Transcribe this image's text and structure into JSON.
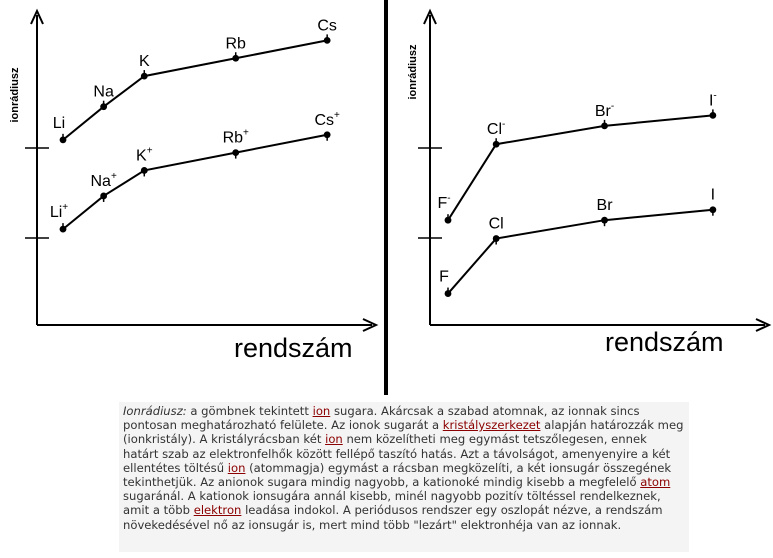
{
  "chart_data": [
    {
      "type": "line",
      "ylabel": "ionrádiusz",
      "xlabel": "rendszám",
      "series": [
        {
          "points": [
            {
              "base": "Li",
              "sup": "",
              "x": 3,
              "y": 0.53
            },
            {
              "base": "Na",
              "sup": "",
              "x": 11,
              "y": 0.66
            },
            {
              "base": "K",
              "sup": "",
              "x": 19,
              "y": 0.78
            },
            {
              "base": "Rb",
              "sup": "",
              "x": 37,
              "y": 0.85
            },
            {
              "base": "Cs",
              "sup": "",
              "x": 55,
              "y": 0.92
            }
          ]
        },
        {
          "points": [
            {
              "base": "Li",
              "sup": "+",
              "x": 3,
              "y": 0.18
            },
            {
              "base": "Na",
              "sup": "+",
              "x": 11,
              "y": 0.31
            },
            {
              "base": "K",
              "sup": "+",
              "x": 19,
              "y": 0.41
            },
            {
              "base": "Rb",
              "sup": "+",
              "x": 37,
              "y": 0.48
            },
            {
              "base": "Cs",
              "sup": "+",
              "x": 55,
              "y": 0.55
            }
          ]
        }
      ]
    },
    {
      "type": "line",
      "ylabel": "ionrádiusz",
      "xlabel": "rendszám",
      "series": [
        {
          "points": [
            {
              "base": "F",
              "sup": "-",
              "x": 9,
              "y": 0.4
            },
            {
              "base": "Cl",
              "sup": "-",
              "x": 17,
              "y": 0.69
            },
            {
              "base": "Br",
              "sup": "-",
              "x": 35,
              "y": 0.76
            },
            {
              "base": "I",
              "sup": "-",
              "x": 53,
              "y": 0.8
            }
          ]
        },
        {
          "points": [
            {
              "base": "F",
              "sup": "",
              "x": 9,
              "y": 0.12
            },
            {
              "base": "Cl",
              "sup": "",
              "x": 17,
              "y": 0.33
            },
            {
              "base": "Br",
              "sup": "",
              "x": 35,
              "y": 0.4
            },
            {
              "base": "I",
              "sup": "",
              "x": 53,
              "y": 0.44
            }
          ]
        }
      ]
    }
  ],
  "caption": {
    "term": "Ionrádiusz:",
    "s1": " a gömbnek tekintett ",
    "link_ion1": "ion",
    "s2": " sugara. Akárcsak a szabad atomnak, az ionnak sincs pontosan meghatározható felülete. Az ionok sugarát a ",
    "link_kristalyszerkezet": "kristályszerkezet",
    "s3": " alapján határozzák meg (ionkristály). A kristályrácsban két ",
    "link_ion2": "ion",
    "s4": " nem közelítheti meg egymást tetszőlegesen, ennek határt szab az elektronfelhők között fellépő taszító hatás. Azt a távolságot, amenyenyire a két ellentétes töltésű ",
    "link_ion3": "ion",
    "s5": " (atommagja) egymást a rácsban megközelíti, a két ionsugár összegének tekinthetjük. Az anionok sugara mindig nagyobb, a kationoké mindig kisebb a megfelelő ",
    "link_atom": "atom",
    "s6": " sugaránál. A kationok ionsugára annál kisebb, minél nagyobb pozitív töltéssel rendelkeznek, amit a több ",
    "link_elektron": "elektron",
    "s7": " leadása indokol. A periódusos rendszer egy oszlopát nézve, a rendszám növekedésével nő az ionsugár is, mert mind több \"lezárt\" elektronhéja van az ionnak."
  }
}
